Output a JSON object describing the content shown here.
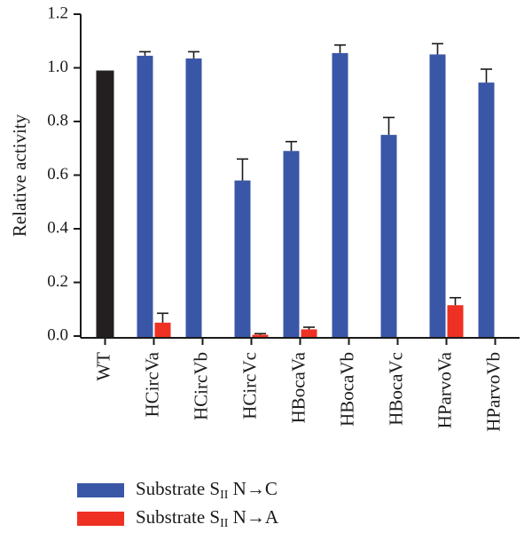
{
  "chart_data": {
    "type": "bar",
    "ylabel": "Relative activity",
    "ylim": [
      0,
      1.2
    ],
    "yticks": [
      "0.0",
      "0.2",
      "0.4",
      "0.6",
      "0.8",
      "1.0",
      "1.2"
    ],
    "categories": [
      "WT",
      "HCircVa",
      "HCircVb",
      "HCircVc",
      "HBocaVa",
      "HBocaVb",
      "HBocaVc",
      "HParvoVa",
      "HParvoVb"
    ],
    "series": [
      {
        "key": "wt",
        "values": [
          0.99,
          null,
          null,
          null,
          null,
          null,
          null,
          null,
          null
        ],
        "errors": [
          null,
          null,
          null,
          null,
          null,
          null,
          null,
          null,
          null
        ],
        "color": "#231f20"
      },
      {
        "key": "nc",
        "name_main": "Substrate S",
        "name_sub": "II",
        "name_tail": " N→C",
        "values": [
          null,
          1.045,
          1.035,
          0.58,
          0.69,
          1.055,
          0.75,
          1.05,
          0.945
        ],
        "errors": [
          null,
          0.015,
          0.025,
          0.08,
          0.035,
          0.03,
          0.065,
          0.04,
          0.05
        ],
        "color": "#3a56a7"
      },
      {
        "key": "na",
        "name_main": "Substrate S",
        "name_sub": "II",
        "name_tail": " N→A",
        "values": [
          null,
          0.05,
          null,
          0.005,
          0.025,
          null,
          null,
          0.115,
          null
        ],
        "errors": [
          null,
          0.035,
          null,
          0.004,
          0.008,
          null,
          null,
          0.028,
          null
        ],
        "color": "#ee3123"
      }
    ],
    "legend_position": "bottom"
  }
}
